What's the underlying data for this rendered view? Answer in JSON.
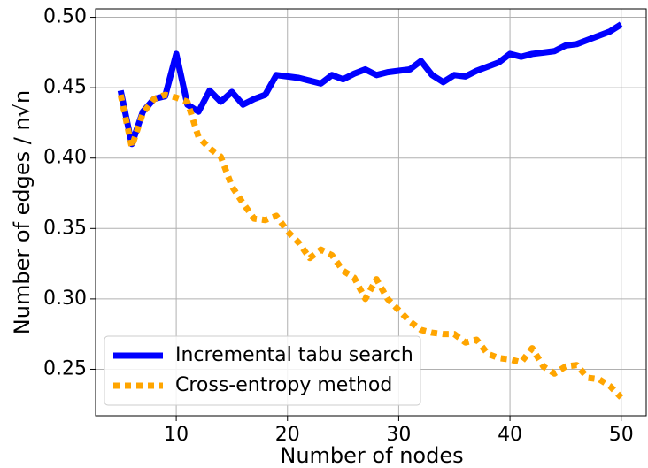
{
  "chart_data": {
    "type": "line",
    "xlabel": "Number of nodes",
    "ylabel": "Number of edges / n√n",
    "x": [
      5,
      6,
      7,
      8,
      9,
      10,
      11,
      12,
      13,
      14,
      15,
      16,
      17,
      18,
      19,
      20,
      21,
      22,
      23,
      24,
      25,
      26,
      27,
      28,
      29,
      30,
      31,
      32,
      33,
      34,
      35,
      36,
      37,
      38,
      39,
      40,
      41,
      42,
      43,
      44,
      45,
      46,
      47,
      48,
      49,
      50
    ],
    "series": [
      {
        "name": "Incremental tabu search",
        "color": "#0000ff",
        "style": "solid",
        "values": [
          0.448,
          0.41,
          0.433,
          0.442,
          0.444,
          0.474,
          0.438,
          0.433,
          0.448,
          0.44,
          0.447,
          0.438,
          0.442,
          0.445,
          0.459,
          0.458,
          0.457,
          0.455,
          0.453,
          0.459,
          0.456,
          0.46,
          0.463,
          0.459,
          0.461,
          0.462,
          0.463,
          0.469,
          0.459,
          0.454,
          0.459,
          0.458,
          0.462,
          0.465,
          0.468,
          0.474,
          0.472,
          0.474,
          0.475,
          0.476,
          0.48,
          0.481,
          0.484,
          0.487,
          0.49,
          0.495
        ]
      },
      {
        "name": "Cross-entropy method",
        "color": "#ffa500",
        "style": "dotted",
        "values": [
          0.445,
          0.408,
          0.432,
          0.442,
          0.445,
          0.443,
          0.44,
          0.415,
          0.407,
          0.401,
          0.38,
          0.368,
          0.357,
          0.356,
          0.359,
          0.348,
          0.34,
          0.329,
          0.335,
          0.331,
          0.32,
          0.315,
          0.3,
          0.314,
          0.3,
          0.292,
          0.284,
          0.278,
          0.276,
          0.275,
          0.275,
          0.269,
          0.271,
          0.261,
          0.258,
          0.257,
          0.255,
          0.265,
          0.252,
          0.247,
          0.252,
          0.253,
          0.244,
          0.243,
          0.238,
          0.23
        ]
      }
    ],
    "xlim": [
      2.75,
      52.25
    ],
    "xticks": [
      10,
      20,
      30,
      40,
      50
    ],
    "ylim": [
      0.217,
      0.506
    ],
    "yticks": [
      0.25,
      {
        "value": 0.3,
        "label": "0.30"
      },
      0.35,
      {
        "value": 0.4,
        "label": "0.40"
      },
      0.45,
      {
        "value": 0.5,
        "label": "0.50"
      }
    ],
    "grid": true,
    "legend": "lower left"
  }
}
